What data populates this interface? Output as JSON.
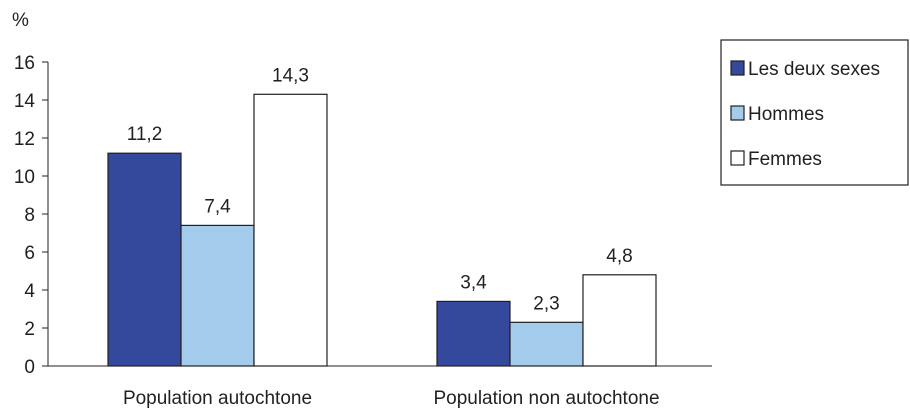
{
  "chart_data": {
    "type": "bar",
    "y_unit": "%",
    "ylim": [
      0,
      16
    ],
    "yticks": [
      0,
      2,
      4,
      6,
      8,
      10,
      12,
      14,
      16
    ],
    "grid": false,
    "legend_position": "top-right",
    "categories": [
      "Population autochtone",
      "Population non autochtone"
    ],
    "series": [
      {
        "name": "Les deux sexes",
        "color": "#34489c",
        "values": [
          11.2,
          3.4
        ],
        "labels": [
          "11,2",
          "3,4"
        ]
      },
      {
        "name": "Hommes",
        "color": "#a3cbec",
        "values": [
          7.4,
          2.3
        ],
        "labels": [
          "7,4",
          "2,3"
        ]
      },
      {
        "name": "Femmes",
        "color": "#ffffff",
        "values": [
          14.3,
          4.8
        ],
        "labels": [
          "14,3",
          "4,8"
        ]
      }
    ]
  }
}
